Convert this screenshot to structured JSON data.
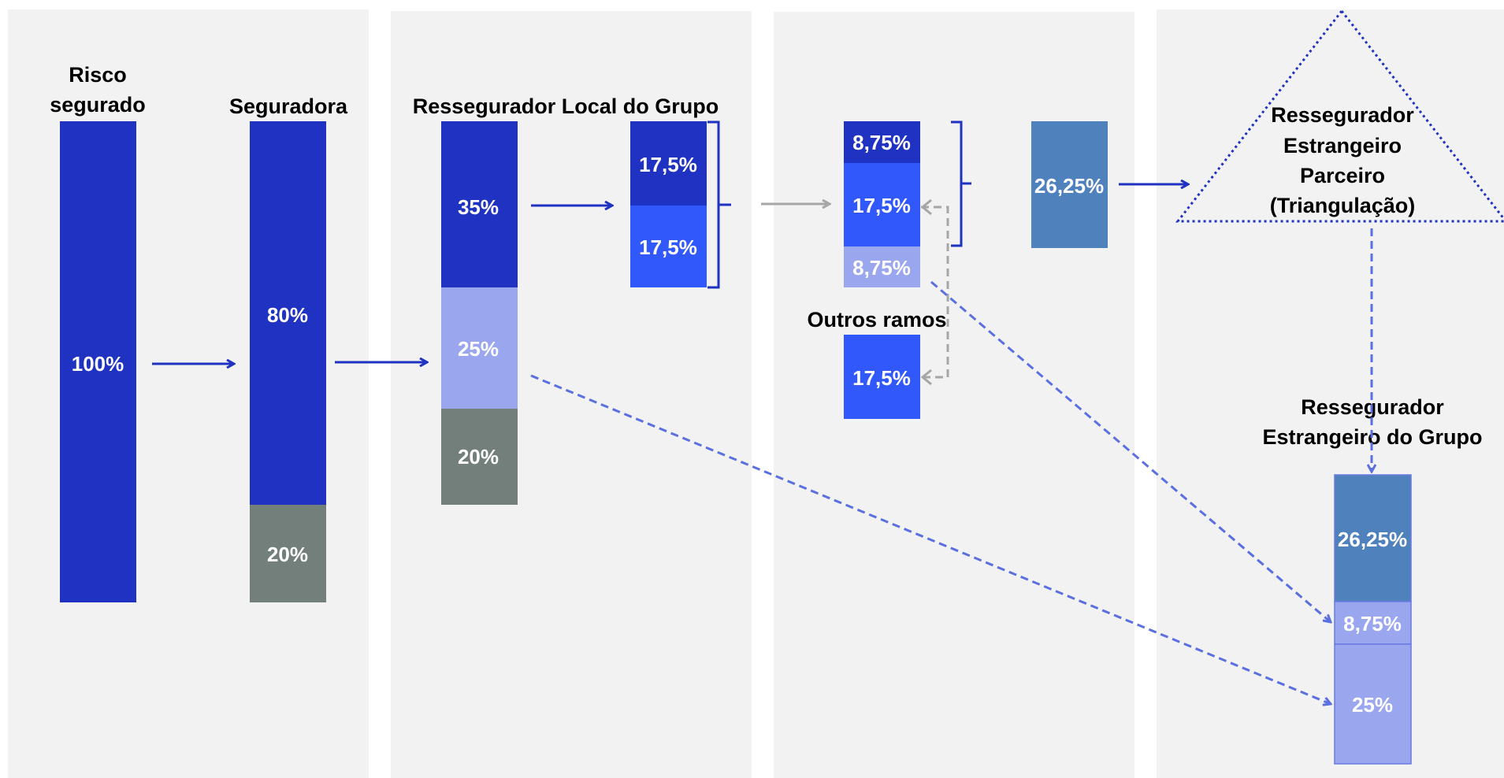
{
  "labels": {
    "risco_line1": "Risco",
    "risco_line2": "segurado",
    "seguradora": "Seguradora",
    "ressegurador_local": "Ressegurador Local do Grupo",
    "outros_ramos": "Outros ramos",
    "parceiro_line1": "Ressegurador",
    "parceiro_line2": "Estrangeiro",
    "parceiro_line3": "Parceiro",
    "parceiro_line4": "(Triangulação)",
    "grupo_line1": "Ressegurador",
    "grupo_line2": "Estrangeiro do Grupo"
  },
  "values": {
    "risco_total": "100%",
    "seguradora_retido": "80%",
    "seguradora_proprio": "20%",
    "local_cedido": "35%",
    "local_grupo": "25%",
    "local_retido": "20%",
    "split_a": "17,5%",
    "split_b": "17,5%",
    "mid_top": "8,75%",
    "mid_middle": "17,5%",
    "mid_bottom": "8,75%",
    "outros_ramos_value": "17,5%",
    "parceiro_total": "26,25%",
    "grupo_top": "26,25%",
    "grupo_middle": "8,75%",
    "grupo_bottom": "25%"
  },
  "colors": {
    "panel": "#f2f2f2",
    "dark_blue": "#1f32c1",
    "bright_blue": "#3058fa",
    "light_blue": "#9aa6ee",
    "gray": "#727f7a",
    "steel_blue": "#4f81bd",
    "dashed_blue": "#5a6fe0",
    "gray_arrow": "#a6a6a6"
  }
}
